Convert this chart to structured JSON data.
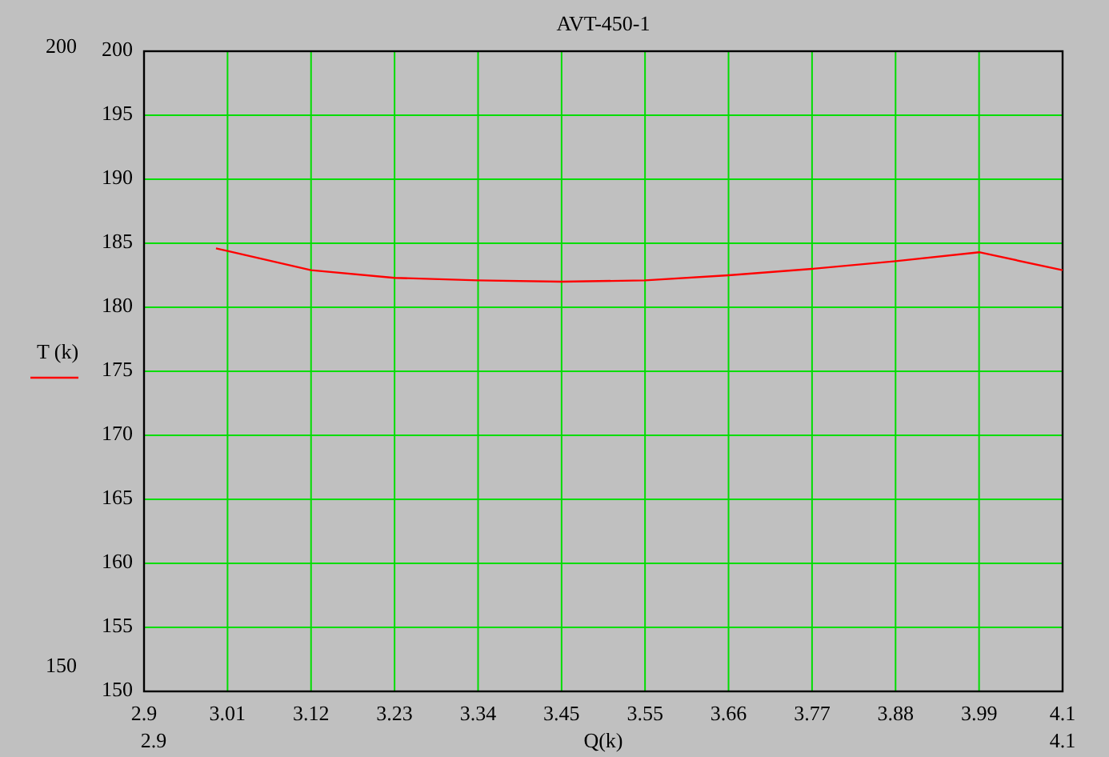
{
  "chart_data": {
    "type": "line",
    "title": "AVT-450-1",
    "xlabel": "Q(k)",
    "x": [
      2.994,
      3.0091,
      3.1182,
      3.2273,
      3.3364,
      3.4455,
      3.5545,
      3.6636,
      3.7727,
      3.8818,
      3.9909,
      4.1
    ],
    "series": [
      {
        "name": "T (k)",
        "color": "#ff0000",
        "values": [
          184.6,
          184.4,
          182.9,
          182.3,
          182.1,
          182.0,
          182.1,
          182.5,
          183.0,
          183.6,
          184.3,
          182.9
        ]
      }
    ],
    "xlim": [
      2.9,
      4.1
    ],
    "ylim": [
      150,
      200
    ],
    "xticks": [
      2.9,
      {
        "value": 3.0091,
        "label": "3.01"
      },
      {
        "value": 3.1182,
        "label": "3.12"
      },
      {
        "value": 3.2273,
        "label": "3.23"
      },
      {
        "value": 3.3364,
        "label": "3.34"
      },
      {
        "value": 3.4455,
        "label": "3.45"
      },
      {
        "value": 3.5545,
        "label": "3.55"
      },
      {
        "value": 3.6636,
        "label": "3.66"
      },
      {
        "value": 3.7727,
        "label": "3.77"
      },
      {
        "value": 3.8818,
        "label": "3.88"
      },
      {
        "value": 3.9909,
        "label": "3.99"
      },
      4.1
    ],
    "yticks": [
      150,
      155,
      160,
      165,
      170,
      175,
      180,
      185,
      190,
      195,
      200
    ],
    "annotations": [
      "200",
      "150",
      "2.9",
      "4.1"
    ],
    "grid": true,
    "legend": "left",
    "marker": "none",
    "line_style": "solid"
  }
}
